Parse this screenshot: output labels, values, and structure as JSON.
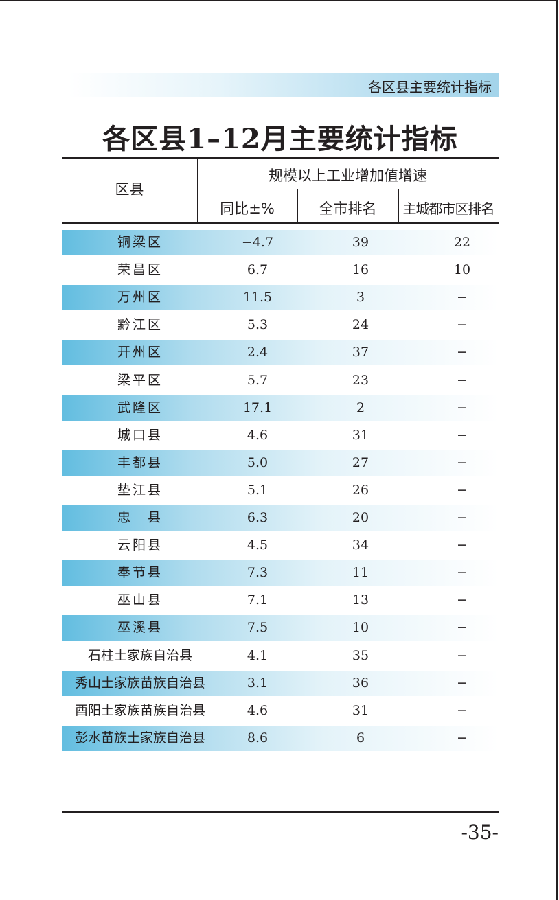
{
  "running_head": "各区县主要统计指标",
  "title": "各区县1–12月主要统计指标",
  "table": {
    "col_district": "区县",
    "group_header": "规模以上工业增加值增速",
    "col_yoy": "同比±%",
    "col_city_rank": "全市排名",
    "col_main_rank": "主城都市区排名",
    "rows": [
      {
        "name": "铜梁区",
        "yoy": "−4.7",
        "city_rank": "39",
        "main_rank": "22"
      },
      {
        "name": "荣昌区",
        "yoy": "6.7",
        "city_rank": "16",
        "main_rank": "10"
      },
      {
        "name": "万州区",
        "yoy": "11.5",
        "city_rank": "3",
        "main_rank": "−"
      },
      {
        "name": "黔江区",
        "yoy": "5.3",
        "city_rank": "24",
        "main_rank": "−"
      },
      {
        "name": "开州区",
        "yoy": "2.4",
        "city_rank": "37",
        "main_rank": "−"
      },
      {
        "name": "梁平区",
        "yoy": "5.7",
        "city_rank": "23",
        "main_rank": "−"
      },
      {
        "name": "武隆区",
        "yoy": "17.1",
        "city_rank": "2",
        "main_rank": "−"
      },
      {
        "name": "城口县",
        "yoy": "4.6",
        "city_rank": "31",
        "main_rank": "−"
      },
      {
        "name": "丰都县",
        "yoy": "5.0",
        "city_rank": "27",
        "main_rank": "−"
      },
      {
        "name": "垫江县",
        "yoy": "5.1",
        "city_rank": "26",
        "main_rank": "−"
      },
      {
        "name": "忠　县",
        "yoy": "6.3",
        "city_rank": "20",
        "main_rank": "−"
      },
      {
        "name": "云阳县",
        "yoy": "4.5",
        "city_rank": "34",
        "main_rank": "−"
      },
      {
        "name": "奉节县",
        "yoy": "7.3",
        "city_rank": "11",
        "main_rank": "−"
      },
      {
        "name": "巫山县",
        "yoy": "7.1",
        "city_rank": "13",
        "main_rank": "−"
      },
      {
        "name": "巫溪县",
        "yoy": "7.5",
        "city_rank": "10",
        "main_rank": "−"
      },
      {
        "name": "石柱土家族自治县",
        "yoy": "4.1",
        "city_rank": "35",
        "main_rank": "−"
      },
      {
        "name": "秀山土家族苗族自治县",
        "yoy": "3.1",
        "city_rank": "36",
        "main_rank": "−"
      },
      {
        "name": "酉阳土家族苗族自治县",
        "yoy": "4.6",
        "city_rank": "31",
        "main_rank": "−"
      },
      {
        "name": "彭水苗族土家族自治县",
        "yoy": "8.6",
        "city_rank": "6",
        "main_rank": "−"
      }
    ]
  },
  "page_number": "-35-",
  "colors": {
    "header_band": "#a3d4ea",
    "row_shade": "#62bde0",
    "text": "#231f20"
  }
}
